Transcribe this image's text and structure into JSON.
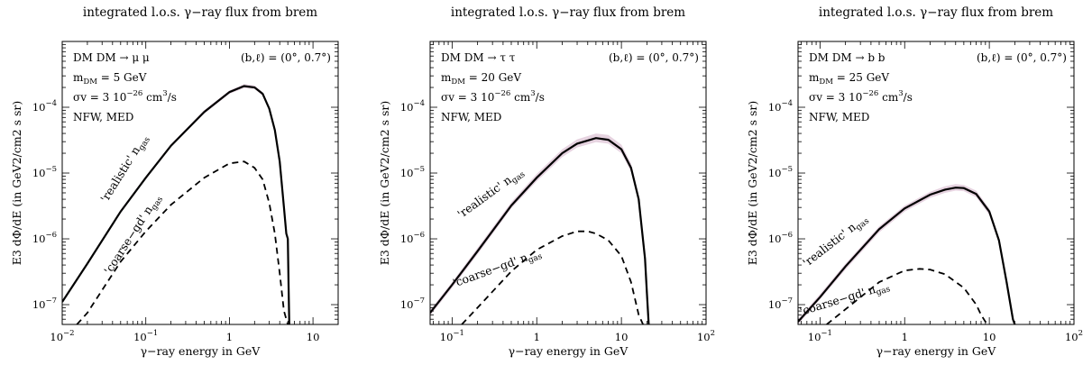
{
  "chart_data": [
    {
      "type": "line",
      "title": "integrated l.o.s. γ−ray flux from brem",
      "xlabel": "γ−ray energy in GeV",
      "ylabel": "E3 dΦ/dE (in GeV2/cm2 s sr)",
      "xscale": "log",
      "yscale": "log",
      "xlim": [
        0.01,
        20
      ],
      "ylim": [
        5e-08,
        0.001
      ],
      "xticks": [
        {
          "v": 0.01,
          "m": "10",
          "e": "−2"
        },
        {
          "v": 0.1,
          "m": "10",
          "e": "−1"
        },
        {
          "v": 1,
          "m": "1",
          "e": ""
        },
        {
          "v": 10,
          "m": "10",
          "e": ""
        }
      ],
      "yticks": [
        {
          "v": 1e-07,
          "m": "10",
          "e": "−7"
        },
        {
          "v": 1e-06,
          "m": "10",
          "e": "−6"
        },
        {
          "v": 1e-05,
          "m": "10",
          "e": "−5"
        },
        {
          "v": 0.0001,
          "m": "10",
          "e": "−4"
        }
      ],
      "annotations": {
        "channel": "DM DM → μ μ",
        "mass_main": "m",
        "mass_sub": "DM",
        "mass_val": " = 5 GeV",
        "sigma_main": "σv = 3  10",
        "sigma_exp": "−26",
        "sigma_unit": " cm",
        "sigma_unit_exp": "3",
        "sigma_tail": "/s",
        "profile": "NFW, MED",
        "coords": "(b,ℓ) = (0°, 0.7°)"
      },
      "series": [
        {
          "name": "'realistic' n",
          "name_sub": "gas",
          "style": "solid",
          "label_pos": [
            0.06,
            1.1e-05
          ],
          "label_angle": -58,
          "x": [
            0.01,
            0.02,
            0.05,
            0.1,
            0.2,
            0.5,
            1,
            1.5,
            2,
            2.5,
            3,
            3.5,
            4,
            4.5,
            4.8,
            5,
            5.1,
            5.2
          ],
          "y": [
            1.1e-07,
            4.2e-07,
            2.6e-06,
            8.5e-06,
            2.6e-05,
            8.5e-05,
            0.00017,
            0.00021,
            0.0002,
            0.00016,
            9.5e-05,
            4.5e-05,
            1.5e-05,
            3e-06,
            1.2e-06,
            1e-06,
            2e-07,
            5e-08
          ],
          "band_lo": [
            1.05e-07,
            4e-07,
            2.5e-06,
            8.1e-06,
            2.5e-05,
            8e-05,
            0.00016,
            0.000195,
            0.00019,
            0.00015,
            9e-05,
            4.3e-05,
            1.4e-05,
            2.8e-06,
            1.1e-06,
            9e-07,
            2e-07,
            5e-08
          ],
          "band_hi": [
            1.15e-07,
            4.4e-07,
            2.75e-06,
            8.9e-06,
            2.75e-05,
            9e-05,
            0.00018,
            0.000225,
            0.000215,
            0.00017,
            0.0001,
            4.8e-05,
            1.6e-05,
            3.2e-06,
            1.3e-06,
            1.1e-06,
            2.2e-07,
            5e-08
          ]
        },
        {
          "name": "'coarse−gd' n",
          "name_sub": "gas",
          "style": "dashed",
          "label_pos": [
            0.075,
            1.1e-06
          ],
          "label_angle": -57,
          "x": [
            0.015,
            0.02,
            0.05,
            0.1,
            0.2,
            0.5,
            1,
            1.5,
            2,
            2.5,
            3,
            3.5,
            4,
            4.5,
            5
          ],
          "y": [
            5e-08,
            7.5e-08,
            4.5e-07,
            1.3e-06,
            3.3e-06,
            8.5e-06,
            1.4e-05,
            1.5e-05,
            1.2e-05,
            8e-06,
            3.5e-06,
            1.2e-06,
            3e-07,
            8e-08,
            5e-08
          ]
        }
      ]
    },
    {
      "type": "line",
      "title": "integrated l.o.s. γ−ray flux from brem",
      "xlabel": "γ−ray energy in GeV",
      "ylabel": "E3 dΦ/dE (in GeV2/cm2 s sr)",
      "xscale": "log",
      "yscale": "log",
      "xlim": [
        0.055,
        100
      ],
      "ylim": [
        5e-08,
        0.001
      ],
      "xticks": [
        {
          "v": 0.1,
          "m": "10",
          "e": "−1"
        },
        {
          "v": 1,
          "m": "1",
          "e": ""
        },
        {
          "v": 10,
          "m": "10",
          "e": ""
        },
        {
          "v": 100,
          "m": "10",
          "e": "2"
        }
      ],
      "yticks": [
        {
          "v": 1e-07,
          "m": "10",
          "e": "−7"
        },
        {
          "v": 1e-06,
          "m": "10",
          "e": "−6"
        },
        {
          "v": 1e-05,
          "m": "10",
          "e": "−5"
        },
        {
          "v": 0.0001,
          "m": "10",
          "e": "−4"
        }
      ],
      "annotations": {
        "channel": "DM DM → τ τ",
        "mass_main": "m",
        "mass_sub": "DM",
        "mass_val": " = 20 GeV",
        "sigma_main": "σv = 3  10",
        "sigma_exp": "−26",
        "sigma_unit": " cm",
        "sigma_unit_exp": "3",
        "sigma_tail": "/s",
        "profile": "NFW, MED",
        "coords": "(b,ℓ) = (0°, 0.7°)"
      },
      "series": [
        {
          "name": "'realistic' n",
          "name_sub": "gas",
          "style": "solid",
          "label_pos": [
            0.3,
            4.5e-06
          ],
          "label_angle": -36,
          "x": [
            0.055,
            0.1,
            0.2,
            0.5,
            1,
            2,
            3,
            5,
            7,
            10,
            13,
            16,
            19,
            20,
            21
          ],
          "y": [
            7.5e-08,
            2e-07,
            6.5e-07,
            3.2e-06,
            8.5e-06,
            2e-05,
            2.8e-05,
            3.4e-05,
            3.2e-05,
            2.3e-05,
            1.2e-05,
            4e-06,
            5e-07,
            1.5e-07,
            5e-08
          ],
          "band_lo": [
            6.8e-08,
            1.8e-07,
            5.8e-07,
            2.9e-06,
            7.5e-06,
            1.75e-05,
            2.45e-05,
            2.95e-05,
            2.8e-05,
            2e-05,
            1.05e-05,
            3.5e-06,
            4.4e-07,
            1.3e-07,
            5e-08
          ],
          "band_hi": [
            8.3e-08,
            2.2e-07,
            7.3e-07,
            3.6e-06,
            9.7e-06,
            2.3e-05,
            3.25e-05,
            4e-05,
            3.8e-05,
            2.7e-05,
            1.4e-05,
            4.6e-06,
            5.8e-07,
            1.7e-07,
            5e-08
          ]
        },
        {
          "name": "'coarse−gd' n",
          "name_sub": "gas",
          "style": "dashed",
          "label_pos": [
            0.35,
            3.2e-07
          ],
          "label_angle": -20,
          "x": [
            0.13,
            0.2,
            0.5,
            1,
            2,
            3,
            4,
            5,
            7,
            10,
            13,
            16,
            18
          ],
          "y": [
            5e-08,
            9e-08,
            3.2e-07,
            6.8e-07,
            1.1e-06,
            1.3e-06,
            1.3e-06,
            1.2e-06,
            9.5e-07,
            5.5e-07,
            2.2e-07,
            7e-08,
            5e-08
          ]
        }
      ]
    },
    {
      "type": "line",
      "title": "integrated l.o.s. γ−ray flux from brem",
      "xlabel": "γ−ray energy in GeV",
      "ylabel": "E3 dΦ/dE (in GeV2/cm2 s sr)",
      "xscale": "log",
      "yscale": "log",
      "xlim": [
        0.055,
        100
      ],
      "ylim": [
        5e-08,
        0.001
      ],
      "xticks": [
        {
          "v": 0.1,
          "m": "10",
          "e": "−1"
        },
        {
          "v": 1,
          "m": "1",
          "e": ""
        },
        {
          "v": 10,
          "m": "10",
          "e": ""
        },
        {
          "v": 100,
          "m": "10",
          "e": "2"
        }
      ],
      "yticks": [
        {
          "v": 1e-07,
          "m": "10",
          "e": "−7"
        },
        {
          "v": 1e-06,
          "m": "10",
          "e": "−6"
        },
        {
          "v": 1e-05,
          "m": "10",
          "e": "−5"
        },
        {
          "v": 0.0001,
          "m": "10",
          "e": "−4"
        }
      ],
      "annotations": {
        "channel": "DM DM → b b",
        "mass_main": "m",
        "mass_sub": "DM",
        "mass_val": " = 25 GeV",
        "sigma_main": "σv = 3  10",
        "sigma_exp": "−26",
        "sigma_unit": " cm",
        "sigma_unit_exp": "3",
        "sigma_tail": "/s",
        "profile": "NFW, MED",
        "coords": "(b,ℓ) = (0°, 0.7°)"
      },
      "series": [
        {
          "name": "'realistic' n",
          "name_sub": "gas",
          "style": "solid",
          "label_pos": [
            0.16,
            8.5e-07
          ],
          "label_angle": -38,
          "x": [
            0.055,
            0.1,
            0.2,
            0.5,
            1,
            2,
            3,
            4,
            5,
            7,
            10,
            13,
            16,
            19,
            20
          ],
          "y": [
            5.5e-08,
            1.3e-07,
            3.8e-07,
            1.4e-06,
            2.9e-06,
            4.7e-06,
            5.6e-06,
            6e-06,
            5.9e-06,
            4.8e-06,
            2.6e-06,
            9.5e-07,
            2.2e-07,
            6e-08,
            5e-08
          ],
          "band_lo": [
            5e-08,
            1.2e-07,
            3.4e-07,
            1.25e-06,
            2.6e-06,
            4.2e-06,
            5e-06,
            5.4e-06,
            5.3e-06,
            4.3e-06,
            2.3e-06,
            8.5e-07,
            2e-07,
            5.5e-08,
            5e-08
          ],
          "band_hi": [
            6e-08,
            1.45e-07,
            4.2e-07,
            1.55e-06,
            3.2e-06,
            5.2e-06,
            6.3e-06,
            6.8e-06,
            6.6e-06,
            5.4e-06,
            2.9e-06,
            1.05e-06,
            2.5e-07,
            6.6e-08,
            5e-08
          ]
        },
        {
          "name": "'coarse−gd' n",
          "name_sub": "gas",
          "style": "dashed",
          "label_pos": [
            0.2,
            1.1e-07
          ],
          "label_angle": -17,
          "x": [
            0.12,
            0.2,
            0.5,
            1,
            1.5,
            2,
            3,
            5,
            7,
            8,
            9,
            10
          ],
          "y": [
            5e-08,
            8.5e-08,
            2.2e-07,
            3.3e-07,
            3.5e-07,
            3.4e-07,
            2.9e-07,
            1.8e-07,
            1e-07,
            7e-08,
            5.5e-08,
            5e-08
          ]
        }
      ]
    }
  ]
}
